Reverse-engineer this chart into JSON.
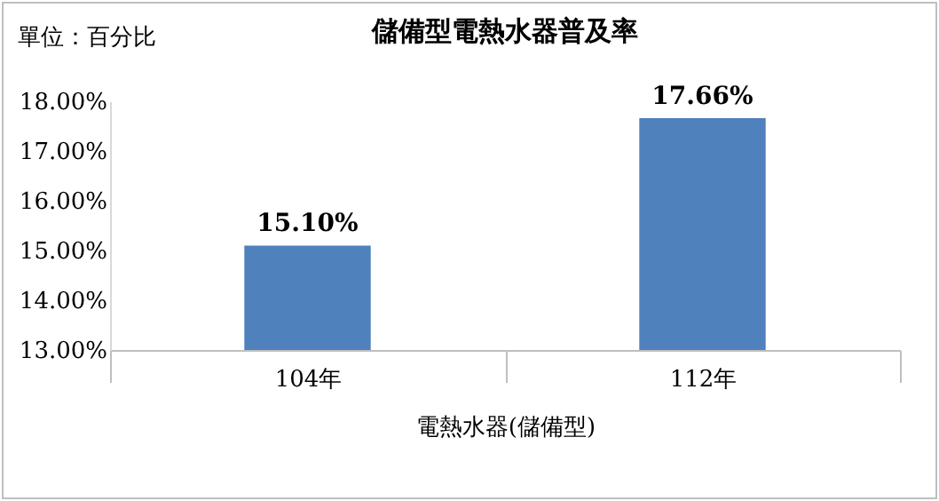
{
  "chart_data": {
    "type": "bar",
    "title": "儲備型電熱水器普及率",
    "annotations": [
      "單位：百分比"
    ],
    "xlabel": "電熱水器(儲備型)",
    "categories": [
      "104年",
      "112年"
    ],
    "values": [
      15.1,
      17.66
    ],
    "value_labels": [
      "15.10%",
      "17.66%"
    ],
    "color": "#4f81bd",
    "ylim": [
      13,
      18
    ],
    "yticks": [
      {
        "value": 13,
        "label": "13.00%"
      },
      {
        "value": 14,
        "label": "14.00%"
      },
      {
        "value": 15,
        "label": "15.00%"
      },
      {
        "value": 16,
        "label": "16.00%"
      },
      {
        "value": 17,
        "label": "17.00%"
      },
      {
        "value": 18,
        "label": "18.00%"
      }
    ],
    "grid": false
  }
}
